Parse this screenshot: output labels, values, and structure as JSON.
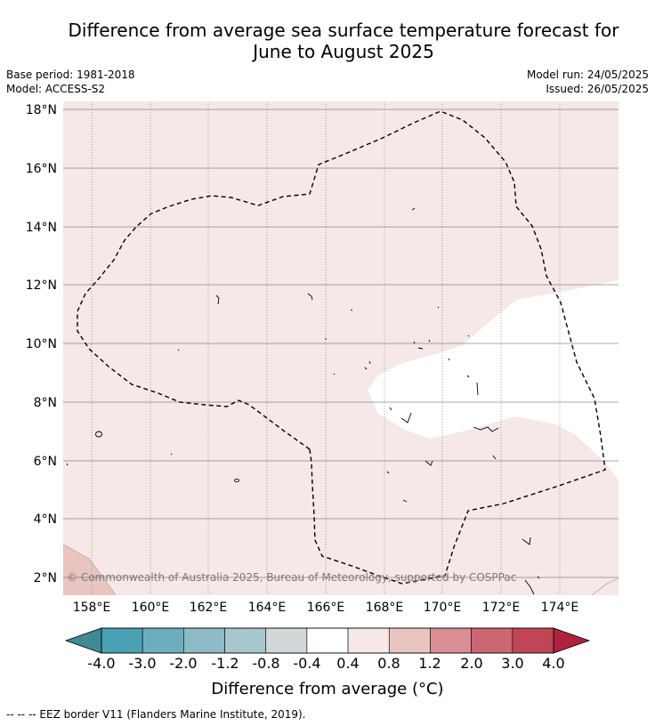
{
  "header": {
    "title_line1": "Difference from average sea surface temperature forecast for",
    "title_line2": "June to August 2025",
    "base_period": "Base period: 1981-2018",
    "model": "Model: ACCESS-S2",
    "model_run": "Model run: 24/05/2025",
    "issued": "Issued: 26/05/2025"
  },
  "map": {
    "lon_ticks": [
      "158°E",
      "160°E",
      "162°E",
      "164°E",
      "166°E",
      "168°E",
      "170°E",
      "172°E",
      "174°E"
    ],
    "lat_ticks": [
      "18°N",
      "16°N",
      "14°N",
      "12°N",
      "10°N",
      "8°N",
      "6°N",
      "4°N",
      "2°N"
    ],
    "copyright": "© Commonwealth of Australia 2025, Bureau of Meteorology, supported by COSPPac",
    "fill_colors": {
      "band_0_4_to_0_8": "#f5e8e7",
      "band_neg0_4_to_0_4": "#ffffff",
      "band_0_8_to_1_2": "#e9c5c1",
      "eez_border": "#000000"
    }
  },
  "colorbar": {
    "title": "Difference from average (°C)",
    "labels": [
      "-4.0",
      "-3.0",
      "-2.0",
      "-1.2",
      "-0.8",
      "-0.4",
      "0.4",
      "0.8",
      "1.2",
      "2.0",
      "3.0",
      "4.0"
    ],
    "colors": [
      "#4aa1b3",
      "#6daebe",
      "#8dbbc6",
      "#a8c7cc",
      "#d2d8da",
      "#ffffff",
      "#f5e8e7",
      "#e9c5c1",
      "#d98f95",
      "#cb6672",
      "#c14655"
    ],
    "under_color": "#3f8a94",
    "over_color": "#b0213f"
  },
  "legend": {
    "eez_note": "-- -- -- EEZ border V11 (Flanders Marine Institute, 2019)."
  }
}
